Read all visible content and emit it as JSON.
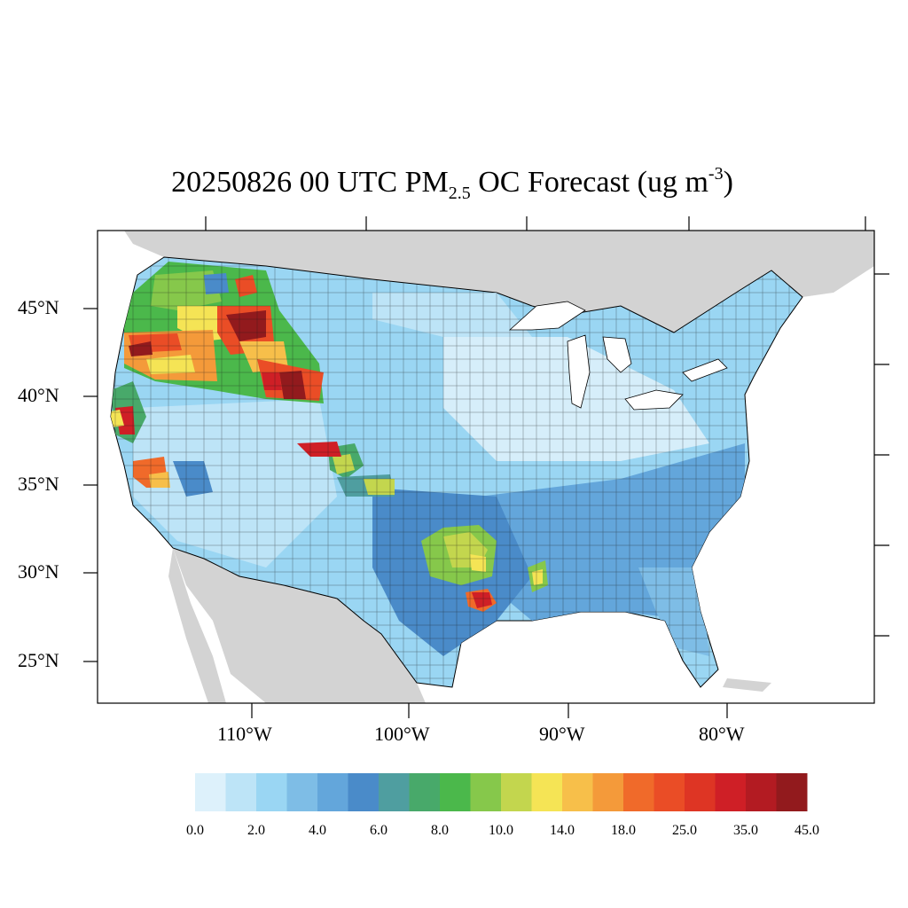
{
  "title": {
    "prefix": "20250826 00 UTC PM",
    "subscript": "2.5",
    "middle": " OC Forecast (ug m",
    "superscript": "-3",
    "suffix": ")"
  },
  "lat_labels": [
    "45°N",
    "40°N",
    "35°N",
    "30°N",
    "25°N"
  ],
  "lon_labels": [
    "110°W",
    "100°W",
    "90°W",
    "80°W"
  ],
  "colorbar": {
    "colors": [
      "#ddf1fb",
      "#bde4f7",
      "#9ad6f3",
      "#7ebde6",
      "#63a6db",
      "#4a8bc9",
      "#4f9ea0",
      "#48a96a",
      "#4bb84b",
      "#86c84b",
      "#c3d64e",
      "#f5e455",
      "#f7bf4a",
      "#f49a3a",
      "#f06a2a",
      "#ea4d26",
      "#de3524",
      "#cf1f26",
      "#b31b22",
      "#921a1d"
    ],
    "labels": [
      "0.0",
      "2.0",
      "4.0",
      "6.0",
      "8.0",
      "10.0",
      "14.0",
      "18.0",
      "25.0",
      "35.0",
      "45.0"
    ]
  },
  "legend_colors": {
    "land_outside": "#d3d3d3",
    "water": "#ffffff",
    "low": "#9ad6f3",
    "high": "#921a1d"
  }
}
